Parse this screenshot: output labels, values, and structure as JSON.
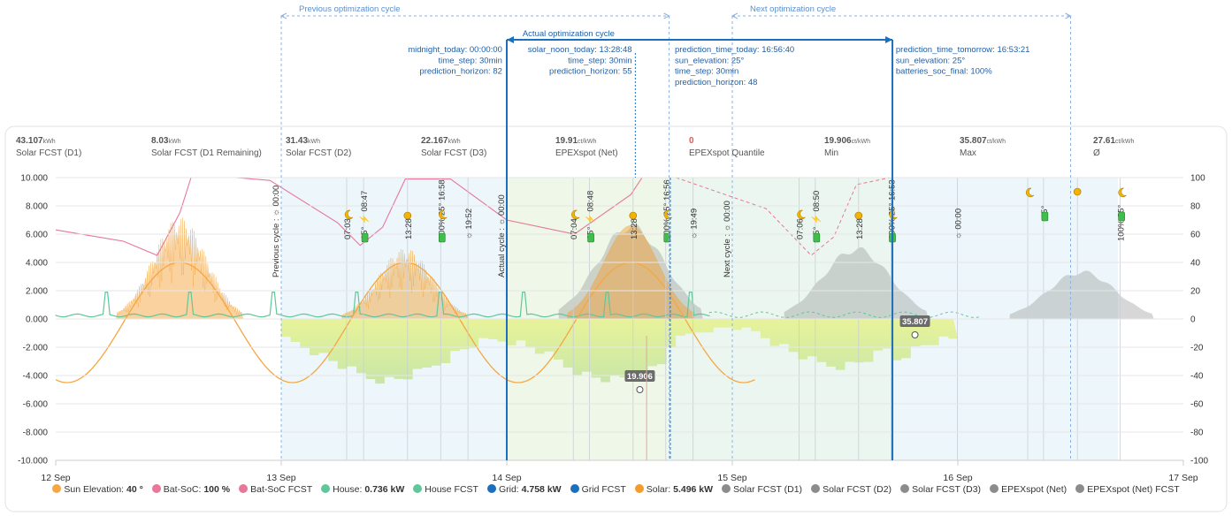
{
  "colors": {
    "sun": "#f4a742",
    "soc": "#e8779a",
    "house": "#5fc79a",
    "grid": "#1c6fbe",
    "solar": "#f29c2b",
    "forecast_gray": "#8c8c8c",
    "price_fill": "#d9ef8b",
    "cycle_line": "#1c6fbe"
  },
  "cycles": {
    "previous": "Previous optimization cycle",
    "actual": "Actual optimization cycle",
    "next": "Next optimization cycle"
  },
  "params": {
    "col1": [
      "midnight_today: 00:00:00",
      "time_step: 30min",
      "prediction_horizon: 82"
    ],
    "col2": [
      "solar_noon_today: 13:28:48",
      "time_step: 30min",
      "prediction_horizon: 55"
    ],
    "col3": [
      "prediction_time_today:  16:56:40",
      "sun_elevation: 25°",
      "time_step: 30min",
      "prediction_horizon: 48"
    ],
    "col4": [
      "prediction_time_tomorrow:  16:53:21",
      "sun_elevation: 25°",
      "batteries_soc_final: 100%"
    ]
  },
  "stats": [
    {
      "value": "43.107",
      "unit": "kWh",
      "label": "Solar FCST (D1)",
      "color": ""
    },
    {
      "value": "8.03",
      "unit": "kWh",
      "label": "Solar FCST (D1 Remaining)",
      "color": ""
    },
    {
      "value": "31.43",
      "unit": "kWh",
      "label": "Solar FCST (D2)",
      "color": ""
    },
    {
      "value": "22.167",
      "unit": "kWh",
      "label": "Solar FCST (D3)",
      "color": ""
    },
    {
      "value": "19.91",
      "unit": "ct/kWh",
      "label": "EPEXspot (Net)",
      "color": ""
    },
    {
      "value": "0",
      "unit": "",
      "label": "EPEXspot Quantile",
      "color": "#e05a5a"
    },
    {
      "value": "19.906",
      "unit": "ct/kWh",
      "label": "Min",
      "color": ""
    },
    {
      "value": "35.807",
      "unit": "ct/kWh",
      "label": "Max",
      "color": ""
    },
    {
      "value": "27.61",
      "unit": "ct/kWh",
      "label": "Ø",
      "color": ""
    }
  ],
  "vmarkers": {
    "cycle_labels": [
      "Previous cycle : ☼ 00:00",
      "Actual cycle : ☼ 00:00",
      "Next cycle : ☼ 00:00"
    ],
    "day13": [
      "07:03",
      "15° ⚡ 08:47",
      "13:28",
      "100% 25° 16:58",
      "☼ 19:52"
    ],
    "day14": [
      "07:04",
      "15° ⚡ 08:48",
      "13:28",
      "100% 25° 16:56",
      "☼ 19:49"
    ],
    "day15": [
      "07:06",
      "15° ⚡ 08:50",
      "13:28",
      "100% 25° 16:53",
      "☼ 00:00"
    ],
    "day16": [
      "15°",
      "100% 25°"
    ]
  },
  "price_labels": {
    "min": "19.906",
    "max": "35.807"
  },
  "chart_data": {
    "type": "area",
    "x_ticks": [
      "12 Sep",
      "13 Sep",
      "14 Sep",
      "15 Sep",
      "16 Sep",
      "17 Sep"
    ],
    "y_left_ticks": [
      "10.000",
      "8.000",
      "6.000",
      "4.000",
      "2.000",
      "0.000",
      "-2.000",
      "-4.000",
      "-6.000",
      "-8.000",
      "-10.000"
    ],
    "y_right_ticks": [
      "100",
      "80",
      "60",
      "40",
      "20",
      "0",
      "-20",
      "-40",
      "-60",
      "-80",
      "-100"
    ],
    "ylim_left": [
      -10,
      10
    ],
    "ylim_right": [
      -100,
      100
    ],
    "xlim_days": [
      12,
      17
    ],
    "series": [
      {
        "name": "Sun Elevation",
        "legend_value": "40 °"
      },
      {
        "name": "Bat-SoC",
        "legend_value": "100 %"
      },
      {
        "name": "Bat-SoC FCST",
        "legend_value": ""
      },
      {
        "name": "House",
        "legend_value": "0.736 kW"
      },
      {
        "name": "House FCST",
        "legend_value": ""
      },
      {
        "name": "Grid",
        "legend_value": "4.758 kW"
      },
      {
        "name": "Grid FCST",
        "legend_value": ""
      },
      {
        "name": "Solar",
        "legend_value": "5.496 kW"
      },
      {
        "name": "Solar FCST (D1)",
        "legend_value": ""
      },
      {
        "name": "Solar FCST (D2)",
        "legend_value": ""
      },
      {
        "name": "Solar FCST (D3)",
        "legend_value": ""
      },
      {
        "name": "EPEXspot (Net)",
        "legend_value": ""
      },
      {
        "name": "EPEXspot (Net) FCST",
        "legend_value": ""
      }
    ],
    "solar_peak_kw": [
      7.2,
      5.0,
      6.6
    ],
    "solar_fcst_peak_kw": [
      6.5,
      4.9,
      3.3
    ],
    "sun_elevation_range_deg": [
      -45,
      40
    ],
    "bat_soc_range_pct": [
      5,
      100
    ],
    "epex_price_ct": {
      "min": 19.906,
      "max": 35.807,
      "avg": 27.61
    }
  }
}
